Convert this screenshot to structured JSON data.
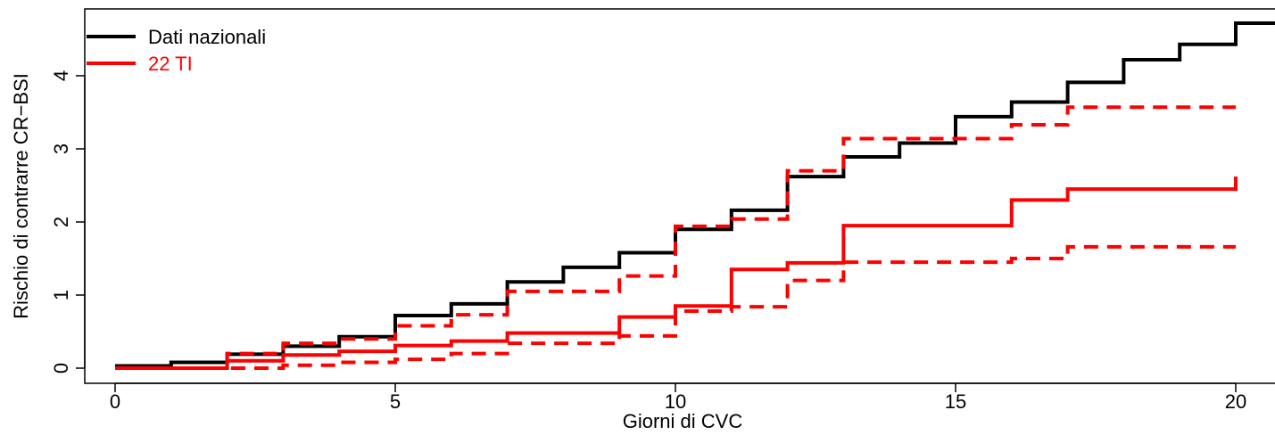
{
  "chart_data": {
    "type": "line",
    "step": true,
    "title": "",
    "xlabel": "Giorni di CVC",
    "ylabel": "Rischio di contrarre CR−BSI",
    "xlim": [
      -1.6,
      20.7
    ],
    "ylim": [
      -0.2,
      4.9
    ],
    "xticks": [
      0,
      5,
      10,
      15,
      20
    ],
    "yticks": [
      0,
      1,
      2,
      3,
      4
    ],
    "grid": false,
    "legend_position": "top-left",
    "series": [
      {
        "name": "Dati nazionali",
        "color": "#000000",
        "style": "solid",
        "x": [
          0,
          1,
          2,
          3,
          4,
          5,
          6,
          7,
          8,
          9,
          10,
          11,
          12,
          13,
          14,
          15,
          16,
          17,
          18,
          19,
          20,
          20.7
        ],
        "y": [
          0.03,
          0.08,
          0.19,
          0.3,
          0.43,
          0.72,
          0.88,
          1.18,
          1.38,
          1.58,
          1.9,
          2.16,
          2.62,
          2.89,
          3.08,
          3.44,
          3.64,
          3.91,
          4.22,
          4.43,
          4.72,
          4.72
        ]
      },
      {
        "name": "22 TI",
        "color": "#ff0000",
        "style": "solid",
        "x": [
          0,
          2,
          3,
          4,
          5,
          6,
          7,
          9,
          10,
          11,
          12,
          13,
          16,
          17,
          20
        ],
        "y": [
          0.0,
          0.1,
          0.18,
          0.23,
          0.31,
          0.37,
          0.48,
          0.7,
          0.85,
          1.35,
          1.44,
          1.95,
          2.3,
          2.45,
          2.62
        ]
      },
      {
        "name": "",
        "color": "#ff0000",
        "style": "dashed",
        "x": [
          0,
          3,
          4,
          5,
          6,
          7,
          9,
          10,
          11,
          12,
          13,
          16,
          17,
          20
        ],
        "y": [
          0.0,
          0.04,
          0.08,
          0.12,
          0.2,
          0.34,
          0.44,
          0.78,
          0.84,
          1.2,
          1.45,
          1.5,
          1.66,
          1.66
        ]
      },
      {
        "name": "",
        "color": "#ff0000",
        "style": "dashed",
        "x": [
          0,
          2,
          3,
          4,
          5,
          6,
          7,
          9,
          10,
          11,
          12,
          13,
          16,
          17,
          20
        ],
        "y": [
          0.0,
          0.2,
          0.34,
          0.4,
          0.58,
          0.73,
          1.05,
          1.26,
          1.94,
          2.04,
          2.7,
          3.14,
          3.33,
          3.57,
          3.57
        ]
      }
    ]
  }
}
